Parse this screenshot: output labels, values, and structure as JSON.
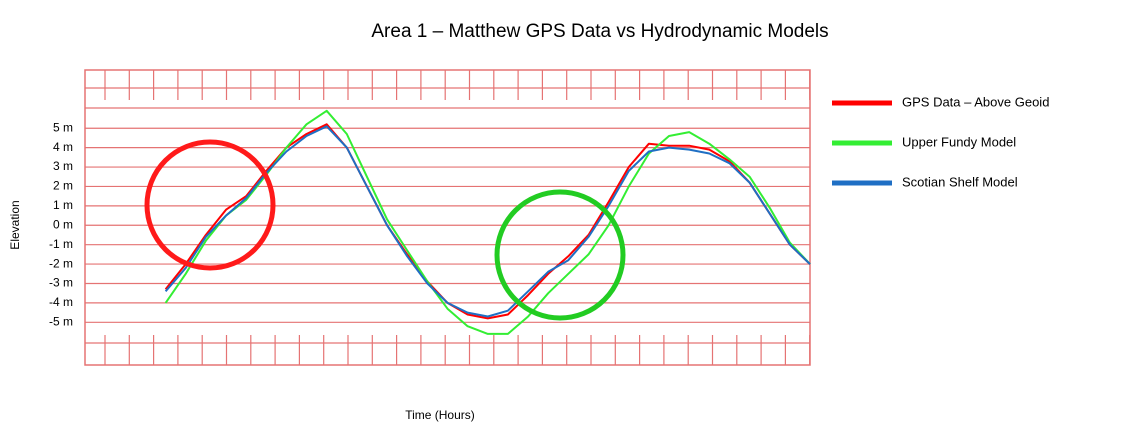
{
  "chart_data": {
    "type": "line",
    "title": "Area 1 – Matthew GPS Data vs Hydrodynamic Models",
    "x_label": "Time (Hours)",
    "y_label": "Elevation",
    "x": [
      4,
      5,
      6,
      7,
      8,
      9,
      10,
      11,
      12,
      13,
      14,
      15,
      16,
      17,
      18,
      19,
      20,
      21,
      22,
      23,
      24,
      25,
      26,
      27,
      28,
      29,
      30,
      31,
      32,
      33,
      34,
      35,
      36
    ],
    "xlim": [
      0,
      36
    ],
    "ylim": [
      -7.2,
      8
    ],
    "yticks": [
      {
        "value": 5,
        "label": "5 m"
      },
      {
        "value": 4,
        "label": "4 m"
      },
      {
        "value": 3,
        "label": "3 m"
      },
      {
        "value": 2,
        "label": "2 m"
      },
      {
        "value": 1,
        "label": "1 m"
      },
      {
        "value": 0,
        "label": "0 m"
      },
      {
        "value": -1,
        "label": "-1 m"
      },
      {
        "value": -2,
        "label": "-2 m"
      },
      {
        "value": -3,
        "label": "-3 m"
      },
      {
        "value": -4,
        "label": "-4 m"
      },
      {
        "value": -5,
        "label": "-5 m"
      }
    ],
    "grid": true,
    "grid_color": "#e57373",
    "legend": "right",
    "series": [
      {
        "name": "GPS Data – Above Geoid",
        "color": "#ff0000",
        "values": [
          -3.3,
          -2,
          -0.5,
          0.8,
          1.5,
          2.8,
          4,
          4.7,
          5.2,
          4,
          2,
          0,
          -1.5,
          -2.9,
          -4,
          -4.6,
          -4.8,
          -4.6,
          -3.6,
          -2.5,
          -1.6,
          -0.5,
          1.2,
          3,
          4.2,
          4.1,
          4.1,
          3.9,
          3.3,
          2.2,
          0.6,
          -1,
          -2
        ]
      },
      {
        "name": "Upper Fundy Model",
        "color": "#33ee33",
        "values": [
          -4,
          -2.5,
          -0.8,
          0.5,
          1.3,
          2.6,
          4,
          5.2,
          5.9,
          4.7,
          2.5,
          0.3,
          -1.3,
          -2.9,
          -4.3,
          -5.2,
          -5.6,
          -5.6,
          -4.7,
          -3.5,
          -2.5,
          -1.5,
          0,
          2,
          3.7,
          4.6,
          4.8,
          4.2,
          3.4,
          2.5,
          0.9,
          -0.9,
          -2
        ]
      },
      {
        "name": "Scotian Shelf Model",
        "color": "#1f6fc4",
        "values": [
          -3.4,
          -2.2,
          -0.6,
          0.5,
          1.4,
          2.7,
          3.8,
          4.6,
          5.1,
          4,
          2,
          0,
          -1.6,
          -3,
          -4,
          -4.5,
          -4.7,
          -4.4,
          -3.4,
          -2.4,
          -1.8,
          -0.6,
          1,
          2.8,
          3.8,
          4,
          3.9,
          3.7,
          3.2,
          2.2,
          0.6,
          -1,
          -2
        ]
      }
    ]
  }
}
